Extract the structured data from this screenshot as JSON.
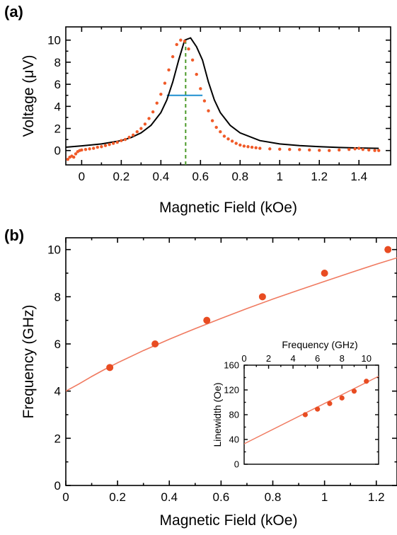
{
  "chart_data": [
    {
      "type": "scatter",
      "panel_label": "(a)",
      "xlabel": "Magnetic Field (kOe)",
      "ylabel": "Voltage (μV)",
      "xlim": [
        -0.08,
        1.56
      ],
      "ylim": [
        -1.3,
        11.2
      ],
      "xticks": [
        0,
        0.2,
        0.4,
        0.6,
        0.8,
        1,
        1.2,
        1.4
      ],
      "xtick_labels": [
        "0",
        "0.2",
        "0.4",
        "0.6",
        "0.8",
        "1",
        "1.2",
        "1.4"
      ],
      "yticks": [
        0,
        2,
        4,
        6,
        8,
        10
      ],
      "ytick_labels": [
        "0",
        "2",
        "4",
        "6",
        "8",
        "10"
      ],
      "grid": false,
      "colors": {
        "data": "#f05a28",
        "fit": "#000000",
        "fwhm": "#1f8fd0",
        "peak_marker": "#4c9a2a"
      },
      "series": [
        {
          "style": "dots",
          "x": [
            -0.07,
            -0.06,
            -0.05,
            -0.04,
            -0.03,
            -0.02,
            -0.01,
            0.0,
            0.02,
            0.04,
            0.06,
            0.08,
            0.1,
            0.12,
            0.14,
            0.16,
            0.18,
            0.2,
            0.22,
            0.24,
            0.26,
            0.28,
            0.3,
            0.32,
            0.34,
            0.36,
            0.38,
            0.4,
            0.42,
            0.44,
            0.46,
            0.48,
            0.5,
            0.52,
            0.54,
            0.56,
            0.58,
            0.6,
            0.62,
            0.64,
            0.66,
            0.68,
            0.7,
            0.72,
            0.74,
            0.76,
            0.78,
            0.8,
            0.82,
            0.84,
            0.86,
            0.88,
            0.9,
            0.95,
            1.0,
            1.05,
            1.1,
            1.15,
            1.2,
            1.25,
            1.3,
            1.35,
            1.38,
            1.4,
            1.42,
            1.45,
            1.48,
            1.5
          ],
          "y": [
            -0.8,
            -0.6,
            -0.5,
            -0.6,
            -0.3,
            -0.1,
            0.0,
            0.05,
            0.1,
            0.15,
            0.2,
            0.3,
            0.35,
            0.45,
            0.55,
            0.65,
            0.75,
            0.9,
            1.0,
            1.2,
            1.4,
            1.7,
            2.0,
            2.4,
            2.9,
            3.5,
            4.3,
            5.1,
            6.1,
            7.3,
            8.5,
            9.6,
            10.0,
            9.9,
            9.2,
            8.2,
            6.9,
            5.6,
            4.5,
            3.6,
            2.7,
            2.1,
            1.7,
            1.3,
            1.05,
            0.85,
            0.65,
            0.5,
            0.4,
            0.35,
            0.3,
            0.25,
            0.2,
            0.15,
            0.12,
            0.1,
            0.08,
            0.05,
            0.02,
            0.0,
            0.05,
            0.1,
            0.15,
            0.2,
            0.1,
            0.05,
            0.0,
            0.0
          ]
        },
        {
          "style": "line",
          "x": [
            -0.08,
            0.0,
            0.1,
            0.2,
            0.25,
            0.3,
            0.35,
            0.4,
            0.43,
            0.46,
            0.49,
            0.52,
            0.55,
            0.58,
            0.61,
            0.64,
            0.67,
            0.7,
            0.75,
            0.8,
            0.9,
            1.0,
            1.1,
            1.2,
            1.3,
            1.4,
            1.5
          ],
          "y": [
            0.3,
            0.42,
            0.6,
            0.9,
            1.18,
            1.6,
            2.28,
            3.44,
            4.58,
            6.21,
            8.2,
            10.0,
            10.2,
            9.4,
            8.2,
            6.21,
            4.58,
            3.44,
            2.28,
            1.6,
            0.9,
            0.6,
            0.45,
            0.35,
            0.28,
            0.23,
            0.2
          ]
        },
        {
          "style": "hline",
          "x": [
            0.43,
            0.61
          ],
          "y": [
            5,
            5
          ]
        },
        {
          "style": "vline-dashed",
          "x": [
            0.525,
            0.525
          ],
          "y": [
            -1.3,
            10.1
          ]
        }
      ]
    },
    {
      "type": "scatter",
      "panel_label": "(b)",
      "xlabel": "Magnetic Field (kOe)",
      "ylabel": "Frequency (GHz)",
      "xlim": [
        0,
        1.28
      ],
      "ylim": [
        0,
        10.5
      ],
      "xticks": [
        0,
        0.2,
        0.4,
        0.6,
        0.8,
        1,
        1.2
      ],
      "xtick_labels": [
        "0",
        "0.2",
        "0.4",
        "0.6",
        "0.8",
        "1",
        "1.2"
      ],
      "yticks": [
        0,
        2,
        4,
        6,
        8,
        10
      ],
      "ytick_labels": [
        "0",
        "2",
        "4",
        "6",
        "8",
        "10"
      ],
      "grid": false,
      "colors": {
        "points": "#e84c22",
        "fit": "#f07a60"
      },
      "series": [
        {
          "style": "markers",
          "x": [
            0.17,
            0.345,
            0.545,
            0.76,
            1.0,
            1.245
          ],
          "y": [
            5,
            6,
            7,
            8,
            9,
            10
          ]
        },
        {
          "style": "line",
          "x": [
            0.0,
            0.05,
            0.1,
            0.15,
            0.2,
            0.3,
            0.4,
            0.5,
            0.6,
            0.7,
            0.8,
            0.9,
            1.0,
            1.1,
            1.2,
            1.28
          ],
          "y": [
            4.0,
            4.3,
            4.62,
            4.92,
            5.2,
            5.72,
            6.2,
            6.65,
            7.08,
            7.5,
            7.9,
            8.28,
            8.65,
            9.02,
            9.38,
            9.65
          ]
        }
      ],
      "inset": {
        "type": "scatter",
        "xlabel": "Frequency (GHz)",
        "ylabel": "Linewidth (Oe)",
        "xlim": [
          0,
          11
        ],
        "ylim": [
          0,
          160
        ],
        "xticks": [
          0,
          2,
          4,
          6,
          8,
          10
        ],
        "xtick_labels": [
          "0",
          "2",
          "4",
          "6",
          "8",
          "10"
        ],
        "yticks": [
          0,
          40,
          80,
          120,
          160
        ],
        "ytick_labels": [
          "0",
          "40",
          "80",
          "120",
          "160"
        ],
        "xaxis_position": "top",
        "series": [
          {
            "style": "markers",
            "x": [
              5,
              6,
              7,
              8,
              9,
              10
            ],
            "y": [
              80,
              89,
              98,
              107,
              118,
              134
            ]
          },
          {
            "style": "line",
            "x": [
              0,
              11
            ],
            "y": [
              33,
              142
            ]
          }
        ]
      }
    }
  ]
}
